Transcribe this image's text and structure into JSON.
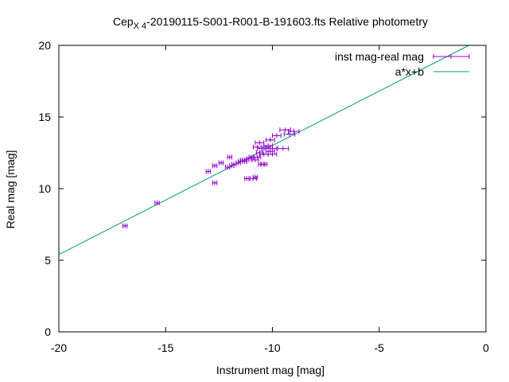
{
  "chart_data": {
    "type": "scatter",
    "title": {
      "prefix": "Cep",
      "subscript": "X 4",
      "suffix": "-20190115-S001-R001-B-191603.fts Relative photometry"
    },
    "xlabel": "Instrument mag [mag]",
    "ylabel": "Real mag [mag]",
    "xlim": [
      -20,
      0
    ],
    "ylim": [
      0,
      20
    ],
    "xticks": [
      -20,
      -15,
      -10,
      -5,
      0
    ],
    "xtick_labels": [
      "-20",
      "-15",
      "-10",
      "-5",
      "0"
    ],
    "yticks": [
      0,
      5,
      10,
      15,
      20
    ],
    "ytick_labels": [
      "0",
      "5",
      "10",
      "15",
      "20"
    ],
    "grid": false,
    "legend_position": "top-right",
    "series": [
      {
        "name": "inst mag-real mag",
        "kind": "points-with-xerror",
        "color": "#9400d3",
        "points": [
          {
            "x": -16.9,
            "y": 7.4,
            "xerr": 0.1
          },
          {
            "x": -15.4,
            "y": 9.0,
            "xerr": 0.1
          },
          {
            "x": -13.0,
            "y": 11.2,
            "xerr": 0.1
          },
          {
            "x": -12.7,
            "y": 10.4,
            "xerr": 0.1
          },
          {
            "x": -12.7,
            "y": 11.6,
            "xerr": 0.1
          },
          {
            "x": -12.4,
            "y": 11.8,
            "xerr": 0.1
          },
          {
            "x": -12.1,
            "y": 11.5,
            "xerr": 0.1
          },
          {
            "x": -12.0,
            "y": 12.2,
            "xerr": 0.1
          },
          {
            "x": -11.9,
            "y": 11.6,
            "xerr": 0.1
          },
          {
            "x": -11.8,
            "y": 11.7,
            "xerr": 0.1
          },
          {
            "x": -11.6,
            "y": 11.8,
            "xerr": 0.1
          },
          {
            "x": -11.5,
            "y": 11.9,
            "xerr": 0.1
          },
          {
            "x": -11.4,
            "y": 12.0,
            "xerr": 0.1
          },
          {
            "x": -11.3,
            "y": 11.9,
            "xerr": 0.1
          },
          {
            "x": -11.2,
            "y": 10.7,
            "xerr": 0.1
          },
          {
            "x": -11.2,
            "y": 12.0,
            "xerr": 0.1
          },
          {
            "x": -11.1,
            "y": 12.1,
            "xerr": 0.1
          },
          {
            "x": -11.0,
            "y": 12.2,
            "xerr": 0.1
          },
          {
            "x": -10.9,
            "y": 10.7,
            "xerr": 0.15
          },
          {
            "x": -10.8,
            "y": 10.8,
            "xerr": 0.1
          },
          {
            "x": -10.8,
            "y": 12.0,
            "xerr": 0.15
          },
          {
            "x": -10.7,
            "y": 12.2,
            "xerr": 0.15
          },
          {
            "x": -10.7,
            "y": 12.9,
            "xerr": 0.2
          },
          {
            "x": -10.6,
            "y": 12.5,
            "xerr": 0.15
          },
          {
            "x": -10.6,
            "y": 13.2,
            "xerr": 0.2
          },
          {
            "x": -10.5,
            "y": 11.7,
            "xerr": 0.15
          },
          {
            "x": -10.5,
            "y": 12.8,
            "xerr": 0.2
          },
          {
            "x": -10.4,
            "y": 12.4,
            "xerr": 0.2
          },
          {
            "x": -10.4,
            "y": 11.7,
            "xerr": 0.15
          },
          {
            "x": -10.3,
            "y": 12.9,
            "xerr": 0.2
          },
          {
            "x": -10.2,
            "y": 13.0,
            "xerr": 0.2
          },
          {
            "x": -10.1,
            "y": 12.6,
            "xerr": 0.2
          },
          {
            "x": -10.1,
            "y": 13.4,
            "xerr": 0.2
          },
          {
            "x": -10.0,
            "y": 12.8,
            "xerr": 0.2
          },
          {
            "x": -10.0,
            "y": 12.4,
            "xerr": 0.2
          },
          {
            "x": -9.8,
            "y": 13.7,
            "xerr": 0.2
          },
          {
            "x": -9.5,
            "y": 12.8,
            "xerr": 0.25
          },
          {
            "x": -9.4,
            "y": 14.1,
            "xerr": 0.25
          },
          {
            "x": -9.2,
            "y": 13.8,
            "xerr": 0.25
          },
          {
            "x": -9.0,
            "y": 14.0,
            "xerr": 0.25
          }
        ]
      },
      {
        "name": "a*x+b",
        "kind": "line",
        "color": "#009e73",
        "x": [
          -20,
          -0.8
        ],
        "y": [
          5.4,
          20.0
        ]
      }
    ]
  }
}
